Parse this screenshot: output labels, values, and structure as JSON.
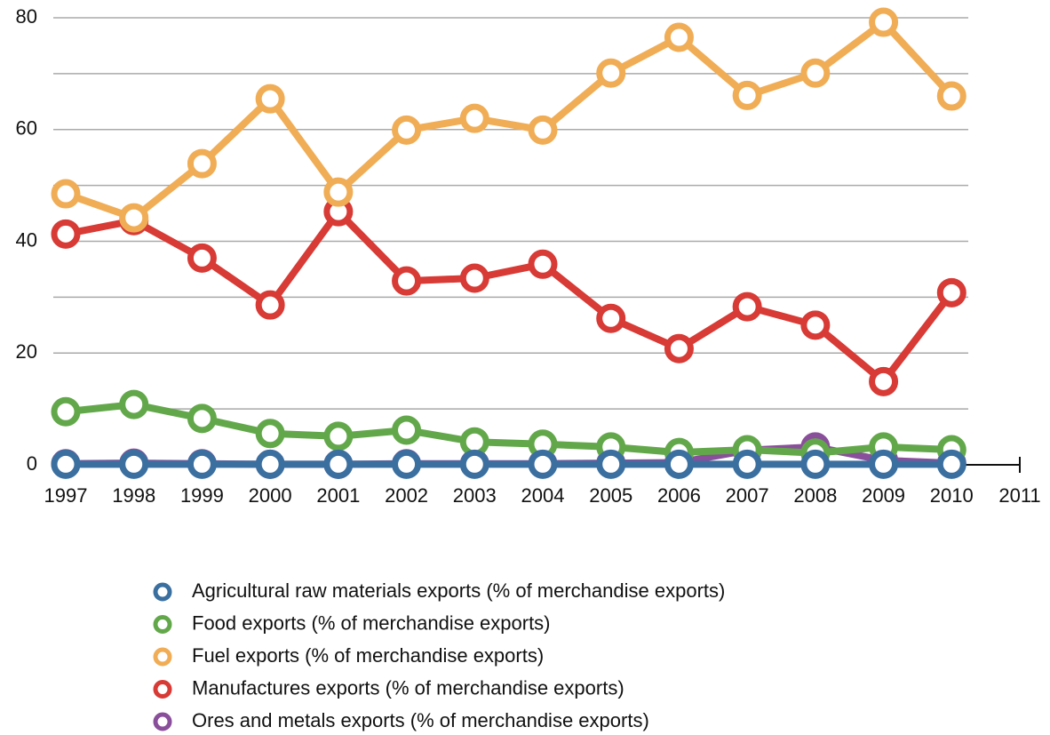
{
  "chart_data": {
    "type": "line",
    "x": [
      1997,
      1998,
      1999,
      2000,
      2001,
      2002,
      2003,
      2004,
      2005,
      2006,
      2007,
      2008,
      2009,
      2010
    ],
    "xlim": [
      1997,
      2011
    ],
    "xticks": [
      1997,
      1998,
      1999,
      2000,
      2001,
      2002,
      2003,
      2004,
      2005,
      2006,
      2007,
      2008,
      2009,
      2010,
      2011
    ],
    "ylim": [
      0,
      80
    ],
    "yticks": [
      0,
      20,
      40,
      60,
      80
    ],
    "minor_yticks": [
      10,
      30,
      50,
      70
    ],
    "grid": true,
    "legend": "bottom",
    "series": [
      {
        "name": "Agricultural raw materials exports (% of merchandise exports)",
        "color": "#3a6fa0",
        "values": [
          0.1,
          0.1,
          0.1,
          0.1,
          0.1,
          0.1,
          0.1,
          0.1,
          0.1,
          0.1,
          0.1,
          0.1,
          0.1,
          0.1
        ]
      },
      {
        "name": "Food exports (% of merchandise exports)",
        "color": "#62a84a",
        "values": [
          9.5,
          10.8,
          8.3,
          5.6,
          5.1,
          6.2,
          4.1,
          3.7,
          3.2,
          2.2,
          2.7,
          2.1,
          3.2,
          2.7
        ]
      },
      {
        "name": "Fuel exports (% of merchandise exports)",
        "color": "#f0ad55",
        "values": [
          48.5,
          44.2,
          53.9,
          65.5,
          48.8,
          59.9,
          62,
          59.9,
          70.1,
          76.5,
          66.1,
          70.1,
          79.2,
          66
        ]
      },
      {
        "name": "Manufactures exports (% of merchandise exports)",
        "color": "#d83a35",
        "values": [
          41.3,
          43.7,
          37,
          28.6,
          45.3,
          32.9,
          33.4,
          35.9,
          26.2,
          20.8,
          28.3,
          25,
          14.9,
          30.8
        ]
      },
      {
        "name": "Ores and metals exports (% of merchandise exports)",
        "color": "#8a4f9a",
        "values": [
          0.2,
          0.3,
          0.2,
          0.1,
          0.1,
          0.2,
          0.2,
          0.2,
          0.3,
          0.4,
          2.6,
          3.2,
          0.8,
          0.3
        ]
      }
    ]
  }
}
